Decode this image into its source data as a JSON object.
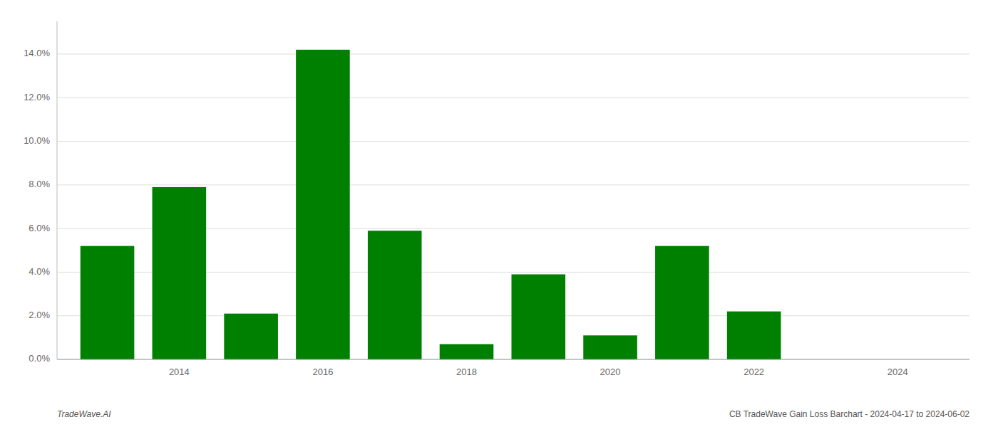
{
  "chart_data": {
    "type": "bar",
    "x": [
      2013,
      2014,
      2015,
      2016,
      2017,
      2018,
      2019,
      2020,
      2021,
      2022,
      2023
    ],
    "values": [
      0.052,
      0.079,
      0.021,
      0.142,
      0.059,
      0.007,
      0.039,
      0.011,
      0.052,
      0.022,
      0.0
    ],
    "color": "#008000",
    "xlim": [
      2012.3,
      2025.0
    ],
    "xticks": [
      2014,
      2016,
      2018,
      2020,
      2022,
      2024
    ],
    "ylim": [
      0,
      0.155
    ],
    "yticks": [
      {
        "value": 0.0,
        "label": "0.0%"
      },
      {
        "value": 0.02,
        "label": "2.0%"
      },
      {
        "value": 0.04,
        "label": "4.0%"
      },
      {
        "value": 0.06,
        "label": "6.0%"
      },
      {
        "value": 0.08,
        "label": "8.0%"
      },
      {
        "value": 0.1,
        "label": "10.0%"
      },
      {
        "value": 0.12,
        "label": "12.0%"
      },
      {
        "value": 0.14,
        "label": "14.0%"
      }
    ],
    "grid": true,
    "annotations": [
      "TradeWave.AI",
      "CB TradeWave Gain Loss Barchart - 2024-04-17 to 2024-06-02"
    ]
  }
}
